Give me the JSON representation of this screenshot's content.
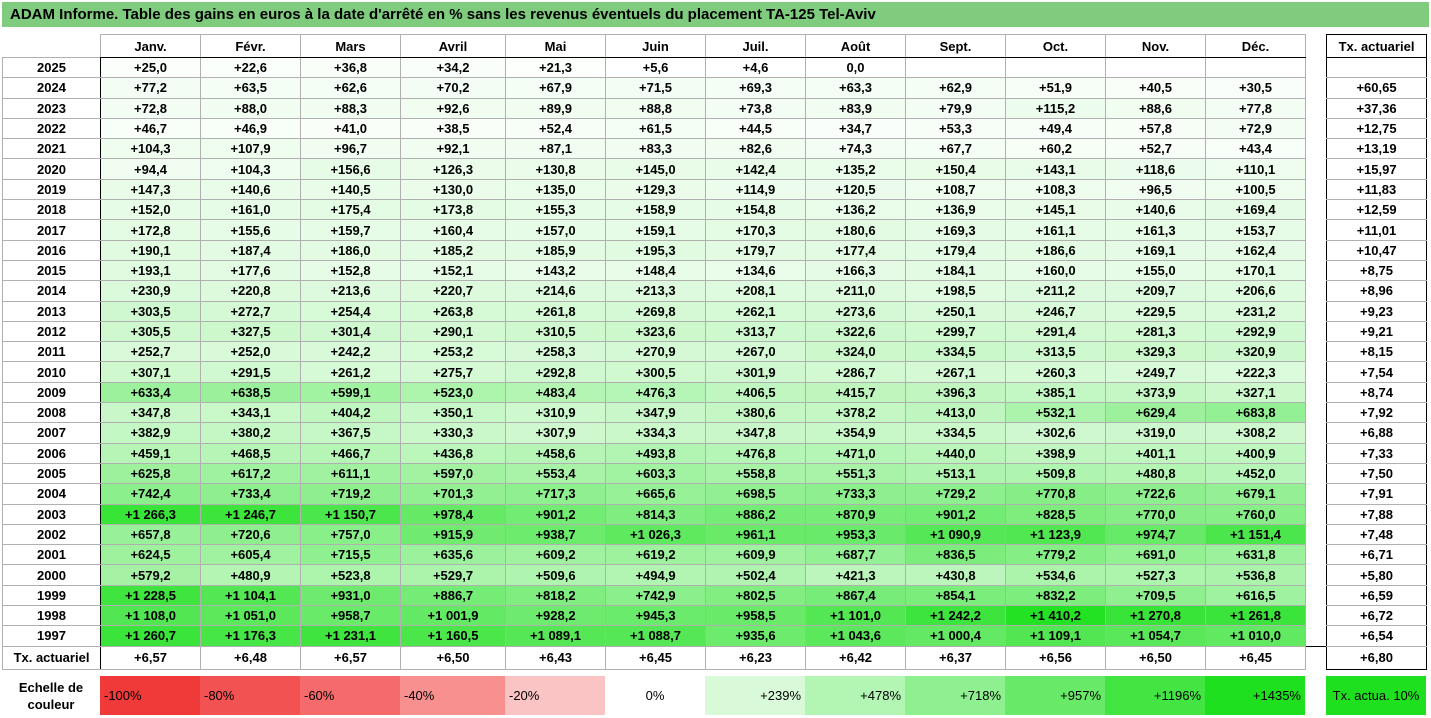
{
  "title": "ADAM Informe. Table des gains en euros à la date d'arrêté en % sans les revenus éventuels du placement TA-125 Tel-Aviv",
  "months": [
    "Janv.",
    "Févr.",
    "Mars",
    "Avril",
    "Mai",
    "Juin",
    "Juil.",
    "Août",
    "Sept.",
    "Oct.",
    "Nov.",
    "Déc."
  ],
  "tx_header": "Tx. actuariel",
  "rows": [
    {
      "year": "2025",
      "values": [
        "+25,0",
        "+22,6",
        "+36,8",
        "+34,2",
        "+21,3",
        "+5,6",
        "+4,6",
        "0,0",
        "",
        "",
        "",
        ""
      ],
      "tx": ""
    },
    {
      "year": "2024",
      "values": [
        "+77,2",
        "+63,5",
        "+62,6",
        "+70,2",
        "+67,9",
        "+71,5",
        "+69,3",
        "+63,3",
        "+62,9",
        "+51,9",
        "+40,5",
        "+30,5"
      ],
      "tx": "+60,65"
    },
    {
      "year": "2023",
      "values": [
        "+72,8",
        "+88,0",
        "+88,3",
        "+92,6",
        "+89,9",
        "+88,8",
        "+73,8",
        "+83,9",
        "+79,9",
        "+115,2",
        "+88,6",
        "+77,8"
      ],
      "tx": "+37,36"
    },
    {
      "year": "2022",
      "values": [
        "+46,7",
        "+46,9",
        "+41,0",
        "+38,5",
        "+52,4",
        "+61,5",
        "+44,5",
        "+34,7",
        "+53,3",
        "+49,4",
        "+57,8",
        "+72,9"
      ],
      "tx": "+12,75"
    },
    {
      "year": "2021",
      "values": [
        "+104,3",
        "+107,9",
        "+96,7",
        "+92,1",
        "+87,1",
        "+83,3",
        "+82,6",
        "+74,3",
        "+67,7",
        "+60,2",
        "+52,7",
        "+43,4"
      ],
      "tx": "+13,19"
    },
    {
      "year": "2020",
      "values": [
        "+94,4",
        "+104,3",
        "+156,6",
        "+126,3",
        "+130,8",
        "+145,0",
        "+142,4",
        "+135,2",
        "+150,4",
        "+143,1",
        "+118,6",
        "+110,1"
      ],
      "tx": "+15,97"
    },
    {
      "year": "2019",
      "values": [
        "+147,3",
        "+140,6",
        "+140,5",
        "+130,0",
        "+135,0",
        "+129,3",
        "+114,9",
        "+120,5",
        "+108,7",
        "+108,3",
        "+96,5",
        "+100,5"
      ],
      "tx": "+11,83"
    },
    {
      "year": "2018",
      "values": [
        "+152,0",
        "+161,0",
        "+175,4",
        "+173,8",
        "+155,3",
        "+158,9",
        "+154,8",
        "+136,2",
        "+136,9",
        "+145,1",
        "+140,6",
        "+169,4"
      ],
      "tx": "+12,59"
    },
    {
      "year": "2017",
      "values": [
        "+172,8",
        "+155,6",
        "+159,7",
        "+160,4",
        "+157,0",
        "+159,1",
        "+170,3",
        "+180,6",
        "+169,3",
        "+161,1",
        "+161,3",
        "+153,7"
      ],
      "tx": "+11,01"
    },
    {
      "year": "2016",
      "values": [
        "+190,1",
        "+187,4",
        "+186,0",
        "+185,2",
        "+185,9",
        "+195,3",
        "+179,7",
        "+177,4",
        "+179,4",
        "+186,6",
        "+169,1",
        "+162,4"
      ],
      "tx": "+10,47"
    },
    {
      "year": "2015",
      "values": [
        "+193,1",
        "+177,6",
        "+152,8",
        "+152,1",
        "+143,2",
        "+148,4",
        "+134,6",
        "+166,3",
        "+184,1",
        "+160,0",
        "+155,0",
        "+170,1"
      ],
      "tx": "+8,75"
    },
    {
      "year": "2014",
      "values": [
        "+230,9",
        "+220,8",
        "+213,6",
        "+220,7",
        "+214,6",
        "+213,3",
        "+208,1",
        "+211,0",
        "+198,5",
        "+211,2",
        "+209,7",
        "+206,6"
      ],
      "tx": "+8,96"
    },
    {
      "year": "2013",
      "values": [
        "+303,5",
        "+272,7",
        "+254,4",
        "+263,8",
        "+261,8",
        "+269,8",
        "+262,1",
        "+273,6",
        "+250,1",
        "+246,7",
        "+229,5",
        "+231,2"
      ],
      "tx": "+9,23"
    },
    {
      "year": "2012",
      "values": [
        "+305,5",
        "+327,5",
        "+301,4",
        "+290,1",
        "+310,5",
        "+323,6",
        "+313,7",
        "+322,6",
        "+299,7",
        "+291,4",
        "+281,3",
        "+292,9"
      ],
      "tx": "+9,21"
    },
    {
      "year": "2011",
      "values": [
        "+252,7",
        "+252,0",
        "+242,2",
        "+253,2",
        "+258,3",
        "+270,9",
        "+267,0",
        "+324,0",
        "+334,5",
        "+313,5",
        "+329,3",
        "+320,9"
      ],
      "tx": "+8,15"
    },
    {
      "year": "2010",
      "values": [
        "+307,1",
        "+291,5",
        "+261,2",
        "+275,7",
        "+292,8",
        "+300,5",
        "+301,9",
        "+286,7",
        "+267,1",
        "+260,3",
        "+249,7",
        "+222,3"
      ],
      "tx": "+7,54"
    },
    {
      "year": "2009",
      "values": [
        "+633,4",
        "+638,5",
        "+599,1",
        "+523,0",
        "+483,4",
        "+476,3",
        "+406,5",
        "+415,7",
        "+396,3",
        "+385,1",
        "+373,9",
        "+327,1"
      ],
      "tx": "+8,74"
    },
    {
      "year": "2008",
      "values": [
        "+347,8",
        "+343,1",
        "+404,2",
        "+350,1",
        "+310,9",
        "+347,9",
        "+380,6",
        "+378,2",
        "+413,0",
        "+532,1",
        "+629,4",
        "+683,8"
      ],
      "tx": "+7,92"
    },
    {
      "year": "2007",
      "values": [
        "+382,9",
        "+380,2",
        "+367,5",
        "+330,3",
        "+307,9",
        "+334,3",
        "+347,8",
        "+354,9",
        "+334,5",
        "+302,6",
        "+319,0",
        "+308,2"
      ],
      "tx": "+6,88"
    },
    {
      "year": "2006",
      "values": [
        "+459,1",
        "+468,5",
        "+466,7",
        "+436,8",
        "+458,6",
        "+493,8",
        "+476,8",
        "+471,0",
        "+440,0",
        "+398,9",
        "+401,1",
        "+400,9"
      ],
      "tx": "+7,33"
    },
    {
      "year": "2005",
      "values": [
        "+625,8",
        "+617,2",
        "+611,1",
        "+597,0",
        "+553,4",
        "+603,3",
        "+558,8",
        "+551,3",
        "+513,1",
        "+509,8",
        "+480,8",
        "+452,0"
      ],
      "tx": "+7,50"
    },
    {
      "year": "2004",
      "values": [
        "+742,4",
        "+733,4",
        "+719,2",
        "+701,3",
        "+717,3",
        "+665,6",
        "+698,5",
        "+733,3",
        "+729,2",
        "+770,8",
        "+722,6",
        "+679,1"
      ],
      "tx": "+7,91"
    },
    {
      "year": "2003",
      "values": [
        "+1 266,3",
        "+1 246,7",
        "+1 150,7",
        "+978,4",
        "+901,2",
        "+814,3",
        "+886,2",
        "+870,9",
        "+901,2",
        "+828,5",
        "+770,0",
        "+760,0"
      ],
      "tx": "+7,88"
    },
    {
      "year": "2002",
      "values": [
        "+657,8",
        "+720,6",
        "+757,0",
        "+915,9",
        "+938,7",
        "+1 026,3",
        "+961,1",
        "+953,3",
        "+1 090,9",
        "+1 123,9",
        "+974,7",
        "+1 151,4"
      ],
      "tx": "+7,48"
    },
    {
      "year": "2001",
      "values": [
        "+624,5",
        "+605,4",
        "+715,5",
        "+635,6",
        "+609,2",
        "+619,2",
        "+609,9",
        "+687,7",
        "+836,5",
        "+779,2",
        "+691,0",
        "+631,8"
      ],
      "tx": "+6,71"
    },
    {
      "year": "2000",
      "values": [
        "+579,2",
        "+480,9",
        "+523,8",
        "+529,7",
        "+509,6",
        "+494,9",
        "+502,4",
        "+421,3",
        "+430,8",
        "+534,6",
        "+527,3",
        "+536,8"
      ],
      "tx": "+5,80"
    },
    {
      "year": "1999",
      "values": [
        "+1 228,5",
        "+1 104,1",
        "+931,0",
        "+886,7",
        "+818,2",
        "+742,9",
        "+802,5",
        "+867,4",
        "+854,1",
        "+832,2",
        "+709,5",
        "+616,5"
      ],
      "tx": "+6,59"
    },
    {
      "year": "1998",
      "values": [
        "+1 108,0",
        "+1 051,0",
        "+958,7",
        "+1 001,9",
        "+928,2",
        "+945,3",
        "+958,5",
        "+1 101,0",
        "+1 242,2",
        "+1 410,2",
        "+1 270,8",
        "+1 261,8"
      ],
      "tx": "+6,72"
    },
    {
      "year": "1997",
      "values": [
        "+1 260,7",
        "+1 176,3",
        "+1 231,1",
        "+1 160,5",
        "+1 089,1",
        "+1 088,7",
        "+935,6",
        "+1 043,6",
        "+1 000,4",
        "+1 109,1",
        "+1 054,7",
        "+1 010,0"
      ],
      "tx": "+6,54"
    }
  ],
  "footer": {
    "label": "Tx. actuariel",
    "values": [
      "+6,57",
      "+6,48",
      "+6,57",
      "+6,50",
      "+6,43",
      "+6,45",
      "+6,23",
      "+6,42",
      "+6,37",
      "+6,56",
      "+6,50",
      "+6,45"
    ],
    "tx": "+6,80"
  },
  "scale": {
    "label": "Echelle de couleur",
    "steps": [
      {
        "text": "-100%",
        "color": "#f03a3a",
        "align": "neg"
      },
      {
        "text": "-80%",
        "color": "#f35252",
        "align": "neg"
      },
      {
        "text": "-60%",
        "color": "#f56a6a",
        "align": "neg"
      },
      {
        "text": "-40%",
        "color": "#f89090",
        "align": "neg"
      },
      {
        "text": "-20%",
        "color": "#fbc4c4",
        "align": "neg"
      },
      {
        "text": "0%",
        "color": "#ffffff",
        "align": "zero"
      },
      {
        "text": "+239%",
        "color": "#d9fad9",
        "align": "pos"
      },
      {
        "text": "+478%",
        "color": "#b3f5b3",
        "align": "pos"
      },
      {
        "text": "+718%",
        "color": "#8ef08e",
        "align": "pos"
      },
      {
        "text": "+957%",
        "color": "#68ea68",
        "align": "pos"
      },
      {
        "text": "+1196%",
        "color": "#42e542",
        "align": "pos"
      },
      {
        "text": "+1435%",
        "color": "#1fe01f",
        "align": "pos"
      }
    ],
    "tx_label": "Tx. actua. 10%"
  }
}
